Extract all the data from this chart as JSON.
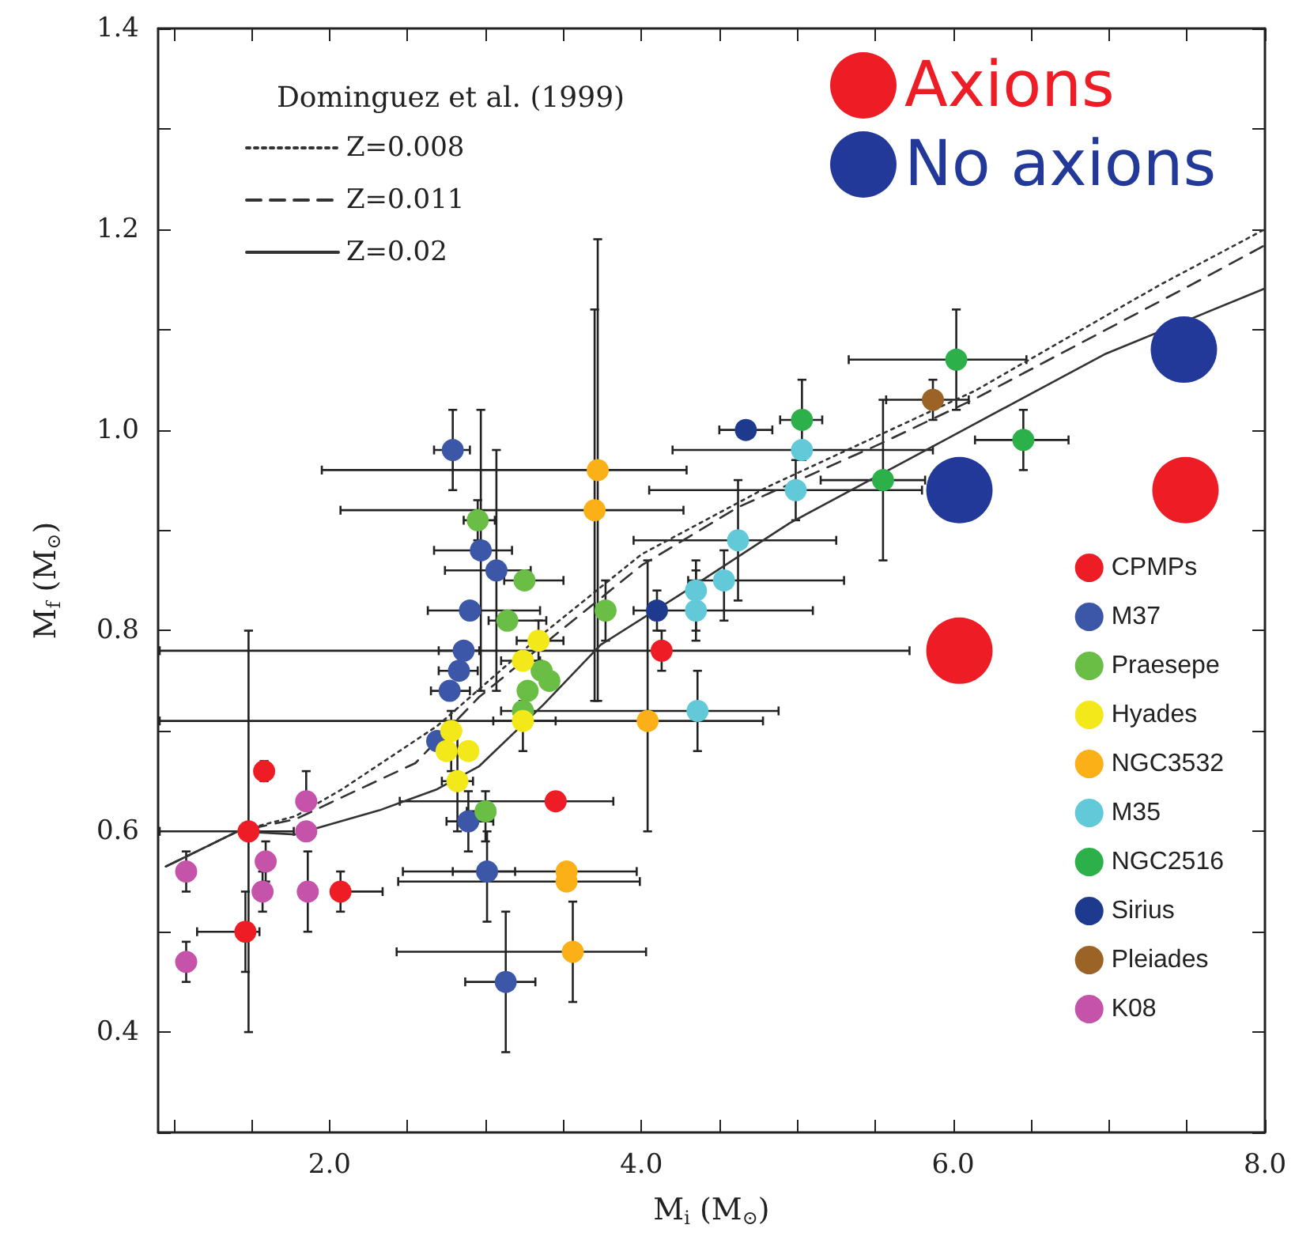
{
  "chart_data": {
    "type": "scatter",
    "xlabel": "M$_{i}$ (M$_{⊙}$)",
    "ylabel": "M$_{f}$ (M$_{⊙}$)",
    "legend_title": "Dominguez et al. (1999)",
    "legend": "right",
    "marker": "circle",
    "grid": false,
    "xlim": [
      0.9,
      8.0
    ],
    "ylim": [
      0.3,
      1.4
    ],
    "xticks": [
      {
        "value": 1,
        "label": null
      },
      {
        "value": 1.5,
        "label": null
      },
      {
        "value": 2,
        "label": "2.0"
      },
      {
        "value": 2.5,
        "label": null
      },
      {
        "value": 3,
        "label": null
      },
      {
        "value": 3.5,
        "label": null
      },
      {
        "value": 4,
        "label": "4.0"
      },
      {
        "value": 4.5,
        "label": null
      },
      {
        "value": 5,
        "label": null
      },
      {
        "value": 5.5,
        "label": null
      },
      {
        "value": 6,
        "label": "6.0"
      },
      {
        "value": 6.5,
        "label": null
      },
      {
        "value": 7,
        "label": null
      },
      {
        "value": 7.5,
        "label": null
      },
      {
        "value": 8,
        "label": "8.0"
      }
    ],
    "yticks": [
      {
        "value": 0.3,
        "label": null
      },
      {
        "value": 0.4,
        "label": "0.4"
      },
      {
        "value": 0.5,
        "label": null
      },
      {
        "value": 0.6,
        "label": "0.6"
      },
      {
        "value": 0.7,
        "label": null
      },
      {
        "value": 0.8,
        "label": "0.8"
      },
      {
        "value": 0.9,
        "label": null
      },
      {
        "value": 1.0,
        "label": "1.0"
      },
      {
        "value": 1.1,
        "label": null
      },
      {
        "value": 1.2,
        "label": "1.2"
      },
      {
        "value": 1.3,
        "label": null
      },
      {
        "value": 1.4,
        "label": "1.4"
      }
    ],
    "series": [
      {
        "name": "Z=0.008",
        "type": "line",
        "marker": "none",
        "line_style": "dotted",
        "color": "#333333",
        "x": [
          0.95,
          1.41,
          1.78,
          2.08,
          2.69,
          3.33,
          4.0,
          4.82,
          6.14,
          7.32,
          8.0
        ],
        "values": [
          0.565,
          0.6,
          0.615,
          0.642,
          0.705,
          0.792,
          0.876,
          0.944,
          1.039,
          1.144,
          1.2
        ]
      },
      {
        "name": "Z=0.011",
        "type": "line",
        "marker": "none",
        "line_style": "dashed",
        "color": "#333333",
        "x": [
          0.95,
          1.41,
          1.78,
          2.08,
          2.55,
          2.96,
          3.33,
          4.0,
          4.62,
          5.53,
          6.14,
          7.52,
          8.0
        ],
        "values": [
          0.565,
          0.6,
          0.612,
          0.634,
          0.668,
          0.734,
          0.781,
          0.865,
          0.923,
          0.986,
          1.031,
          1.144,
          1.184
        ]
      },
      {
        "name": "Z=0.02",
        "type": "line",
        "marker": "none",
        "line_style": "solid",
        "color": "#333333",
        "x": [
          0.95,
          1.41,
          1.78,
          2.32,
          2.69,
          2.96,
          3.37,
          3.74,
          4.28,
          4.85,
          4.95,
          5.97,
          6.98,
          8.0
        ],
        "values": [
          0.565,
          0.6,
          0.597,
          0.621,
          0.642,
          0.665,
          0.726,
          0.786,
          0.839,
          0.897,
          0.907,
          0.992,
          1.076,
          1.141
        ]
      },
      {
        "name": "Axions",
        "color": "#ee1c25",
        "x": [
          7.49,
          6.04
        ],
        "values": [
          0.94,
          0.78
        ]
      },
      {
        "name": "No axions",
        "color": "#22399a",
        "x": [
          6.04,
          7.48
        ],
        "values": [
          0.94,
          1.08
        ]
      },
      {
        "name": "CPMPs",
        "color": "#ee1c25",
        "x": [
          1.58,
          1.48,
          1.46,
          2.07,
          3.45,
          4.13
        ],
        "values": [
          0.66,
          0.6,
          0.5,
          0.54,
          0.63,
          0.78
        ],
        "errors": [
          [
            0.65,
            0.67
          ],
          [
            0.4,
            0.8
          ],
          [
            0.46,
            0.54
          ],
          [
            0.52,
            0.56
          ],
          null,
          [
            0.76,
            0.8
          ]
        ],
        "xerrors": [
          [
            1.55,
            1.62
          ],
          [
            0.91,
            1.77
          ],
          [
            1.15,
            1.55
          ],
          [
            2.07,
            2.34
          ],
          [
            2.45,
            3.82
          ],
          [
            0.91,
            5.72
          ]
        ]
      },
      {
        "name": "M37",
        "color": "#3c56a8",
        "x": [
          2.79,
          2.97,
          3.07,
          2.9,
          2.86,
          2.83,
          2.77,
          2.69,
          2.89,
          3.01,
          3.13
        ],
        "values": [
          0.98,
          0.88,
          0.86,
          0.82,
          0.78,
          0.76,
          0.74,
          0.69,
          0.61,
          0.56,
          0.45
        ],
        "errors": [
          [
            0.94,
            1.02
          ],
          [
            0.74,
            1.02
          ],
          [
            0.74,
            0.98
          ],
          null,
          null,
          null,
          null,
          null,
          [
            0.58,
            0.64
          ],
          [
            0.51,
            0.6
          ],
          [
            0.38,
            0.52
          ]
        ],
        "xerrors": [
          [
            2.67,
            2.9
          ],
          [
            2.67,
            3.17
          ],
          [
            2.74,
            3.29
          ],
          [
            2.63,
            3.35
          ],
          [
            2.7,
            2.96
          ],
          [
            2.7,
            2.95
          ],
          [
            2.65,
            2.9
          ],
          null,
          [
            2.75,
            3.05
          ],
          [
            2.79,
            3.19
          ],
          [
            2.87,
            3.32
          ]
        ]
      },
      {
        "name": "Praesepe",
        "color": "#6abd45",
        "x": [
          2.95,
          3.25,
          3.14,
          3.77,
          3.36,
          3.41,
          3.27,
          3.24,
          3.0
        ],
        "values": [
          0.91,
          0.85,
          0.81,
          0.82,
          0.76,
          0.75,
          0.74,
          0.72,
          0.62
        ],
        "errors": [
          [
            0.89,
            0.93
          ],
          null,
          null,
          [
            0.79,
            0.85
          ],
          null,
          null,
          null,
          null,
          [
            0.59,
            0.64
          ]
        ],
        "xerrors": [
          [
            2.86,
            3.06
          ],
          [
            3.12,
            3.5
          ],
          [
            3.02,
            3.39
          ],
          null,
          null,
          null,
          null,
          null,
          [
            2.88,
            3.06
          ]
        ]
      },
      {
        "name": "Hyades",
        "color": "#f2e81a",
        "x": [
          3.34,
          3.24,
          3.24,
          2.78,
          2.75,
          2.89,
          2.82
        ],
        "values": [
          0.79,
          0.77,
          0.71,
          0.7,
          0.68,
          0.68,
          0.65
        ],
        "errors": [
          [
            0.77,
            0.81
          ],
          null,
          [
            0.68,
            0.73
          ],
          [
            0.66,
            0.72
          ],
          null,
          null,
          [
            0.6,
            0.7
          ]
        ],
        "xerrors": [
          [
            3.2,
            3.5
          ],
          [
            3.1,
            3.35
          ],
          [
            3.05,
            3.45
          ],
          null,
          null,
          null,
          [
            2.72,
            2.92
          ]
        ]
      },
      {
        "name": "NGC3532",
        "color": "#fbb017",
        "x": [
          3.72,
          3.7,
          4.04,
          3.52,
          3.52,
          3.56
        ],
        "values": [
          0.96,
          0.92,
          0.71,
          0.56,
          0.55,
          0.48
        ],
        "errors": [
          [
            0.73,
            1.19
          ],
          [
            0.73,
            1.12
          ],
          [
            0.6,
            0.87
          ],
          null,
          null,
          [
            0.43,
            0.53
          ]
        ],
        "xerrors": [
          [
            1.95,
            4.29
          ],
          [
            2.07,
            4.27
          ],
          [
            0.91,
            4.78
          ],
          [
            2.47,
            3.97
          ],
          [
            2.44,
            3.99
          ],
          [
            2.43,
            4.03
          ]
        ]
      },
      {
        "name": "M35",
        "color": "#62c9d8",
        "x": [
          4.35,
          4.35,
          4.53,
          4.62,
          4.36,
          5.03,
          4.99
        ],
        "values": [
          0.84,
          0.82,
          0.85,
          0.89,
          0.72,
          0.98,
          0.94
        ],
        "errors": [
          [
            0.8,
            0.87
          ],
          [
            0.79,
            0.86
          ],
          [
            0.81,
            0.88
          ],
          [
            0.83,
            0.95
          ],
          [
            0.68,
            0.76
          ],
          null,
          [
            0.91,
            0.97
          ]
        ],
        "xerrors": [
          null,
          [
            3.95,
            5.1
          ],
          [
            4.3,
            5.3
          ],
          [
            3.95,
            5.25
          ],
          [
            3.1,
            4.88
          ],
          [
            4.2,
            5.87
          ],
          [
            4.05,
            5.8
          ]
        ]
      },
      {
        "name": "NGC2516",
        "color": "#2bb04a",
        "x": [
          6.02,
          5.03,
          6.45,
          5.55
        ],
        "values": [
          1.07,
          1.01,
          0.99,
          0.95
        ],
        "errors": [
          [
            1.02,
            1.12
          ],
          [
            0.97,
            1.05
          ],
          [
            0.96,
            1.02
          ],
          [
            0.87,
            1.03
          ]
        ],
        "xerrors": [
          [
            5.33,
            6.47
          ],
          [
            4.89,
            5.16
          ],
          [
            6.14,
            6.74
          ],
          [
            5.15,
            5.82
          ]
        ]
      },
      {
        "name": "Sirius",
        "color": "#1e3a8f",
        "x": [
          4.67,
          4.1
        ],
        "values": [
          1.0,
          0.82
        ],
        "errors": [
          null,
          [
            0.8,
            0.84
          ]
        ],
        "xerrors": [
          [
            4.5,
            4.84
          ],
          null
        ]
      },
      {
        "name": "Pleiades",
        "color": "#9c6326",
        "x": [
          5.87
        ],
        "values": [
          1.03
        ],
        "errors": [
          [
            1.01,
            1.05
          ]
        ],
        "xerrors": [
          [
            5.57,
            6.1
          ]
        ]
      },
      {
        "name": "K08",
        "color": "#c553a9",
        "x": [
          1.08,
          1.08,
          1.85,
          1.85,
          1.59,
          1.57,
          1.86
        ],
        "values": [
          0.56,
          0.47,
          0.63,
          0.6,
          0.57,
          0.54,
          0.54
        ],
        "errors": [
          [
            0.54,
            0.58
          ],
          [
            0.45,
            0.49
          ],
          [
            0.63,
            0.66
          ],
          null,
          [
            0.55,
            0.59
          ],
          [
            0.52,
            0.56
          ],
          [
            0.5,
            0.58
          ]
        ]
      }
    ]
  }
}
